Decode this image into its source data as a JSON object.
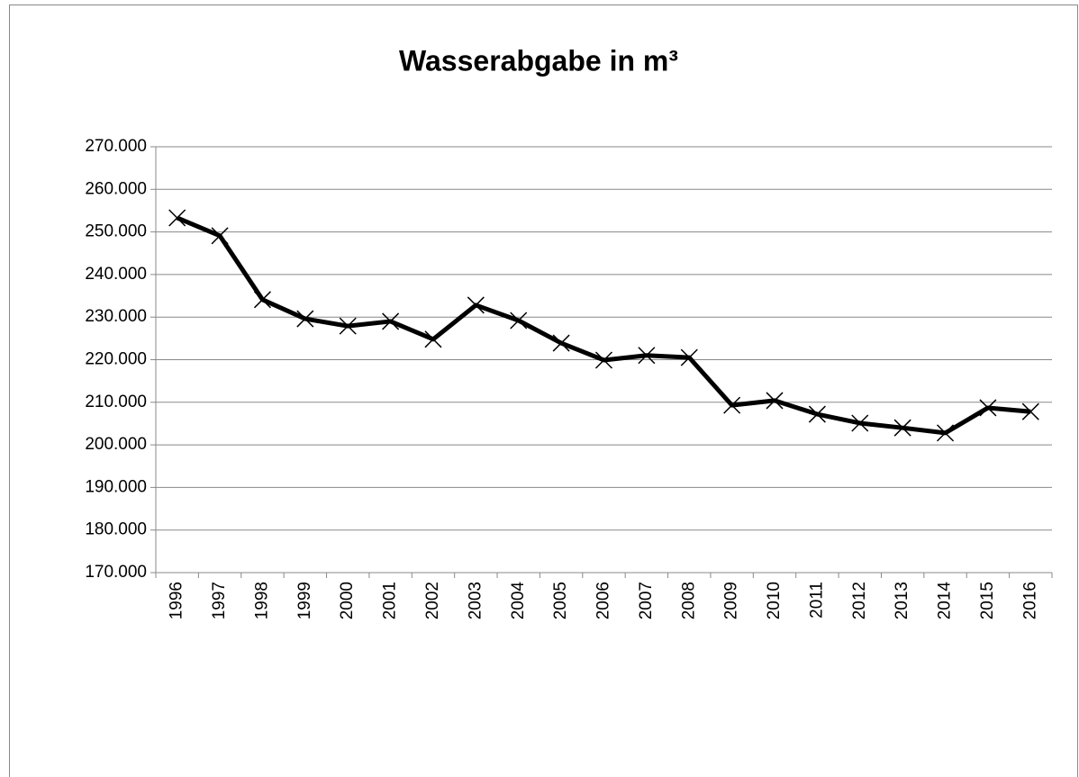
{
  "chart_data": {
    "type": "line",
    "title": "Wasserabgabe in m³",
    "categories": [
      "1996",
      "1997",
      "1998",
      "1999",
      "2000",
      "2001",
      "2002",
      "2003",
      "2004",
      "2005",
      "2006",
      "2007",
      "2008",
      "2009",
      "2010",
      "2011",
      "2012",
      "2013",
      "2014",
      "2015",
      "2016"
    ],
    "series": [
      {
        "name": "Wasserabgabe",
        "color": "#000000",
        "values": [
          253300,
          249100,
          234100,
          229600,
          227900,
          229000,
          224800,
          232800,
          229200,
          223900,
          219900,
          221000,
          220500,
          209300,
          210400,
          207200,
          205100,
          204000,
          202800,
          208700,
          207800
        ]
      }
    ],
    "ylim": [
      170000,
      270000
    ],
    "yticks": [
      {
        "value": 170000,
        "label": "170.000"
      },
      {
        "value": 180000,
        "label": "180.000"
      },
      {
        "value": 190000,
        "label": "190.000"
      },
      {
        "value": 200000,
        "label": "200.000"
      },
      {
        "value": 210000,
        "label": "210.000"
      },
      {
        "value": 220000,
        "label": "220.000"
      },
      {
        "value": 230000,
        "label": "230.000"
      },
      {
        "value": 240000,
        "label": "240.000"
      },
      {
        "value": 250000,
        "label": "250.000"
      },
      {
        "value": 260000,
        "label": "260.000"
      },
      {
        "value": 270000,
        "label": "270.000"
      }
    ],
    "grid": true
  }
}
